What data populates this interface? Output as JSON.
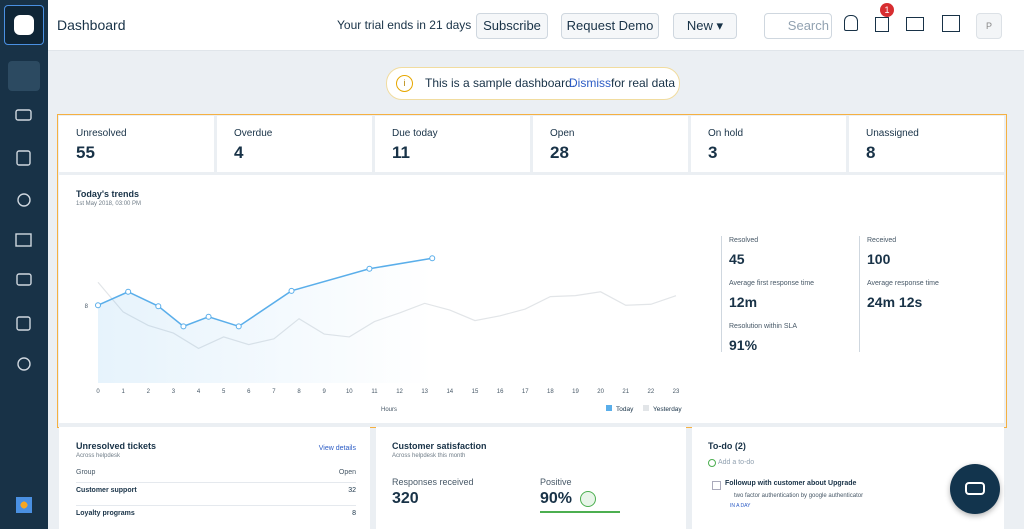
{
  "header": {
    "title": "Dashboard",
    "trial": "Your trial ends in 21 days",
    "subscribe": "Subscribe",
    "request_demo": "Request Demo",
    "new": "New",
    "search": "Search",
    "notification_count": "1",
    "avatar": "P"
  },
  "banner": {
    "text": "This is a sample dashboard.",
    "link": "Dismiss",
    "suffix": "for real data"
  },
  "stats": [
    {
      "label": "Unresolved",
      "value": 55
    },
    {
      "label": "Overdue",
      "value": 4
    },
    {
      "label": "Due today",
      "value": 11
    },
    {
      "label": "Open",
      "value": 28
    },
    {
      "label": "On hold",
      "value": 3
    },
    {
      "label": "Unassigned",
      "value": 8
    }
  ],
  "chart_data": {
    "type": "line",
    "title": "Today's trends",
    "subtitle": "1st May 2018, 03:00 PM",
    "x_label": "Hours",
    "x": [
      0,
      1,
      2,
      3,
      4,
      5,
      6,
      7,
      8,
      9,
      10,
      11,
      12,
      13,
      14,
      15,
      16,
      17,
      18,
      19,
      20,
      21,
      22,
      23
    ],
    "xlim": [
      0,
      23
    ],
    "ylim": [
      0,
      16
    ],
    "yticks": [
      8
    ],
    "series": [
      {
        "name": "Today",
        "color": "#5aaeea",
        "x": [
          0,
          1.2,
          2.4,
          3.4,
          4.4,
          5.6,
          7.7,
          10.8,
          13.3
        ],
        "values": [
          8.1,
          9.5,
          8,
          5.9,
          6.9,
          5.9,
          9.6,
          11.9,
          13
        ]
      },
      {
        "name": "Yesterday",
        "color": "#e2e5e8",
        "x": [
          0,
          1,
          2,
          3,
          4,
          5,
          6,
          7,
          8,
          9,
          10,
          11,
          12,
          13,
          14,
          15,
          16,
          17,
          18,
          19,
          20,
          21,
          22,
          23
        ],
        "values": [
          10.5,
          7.4,
          6,
          5.2,
          3.6,
          4.8,
          4,
          4.6,
          6.7,
          5.1,
          4.8,
          6.4,
          7.3,
          8.3,
          7.6,
          6.5,
          7,
          7.7,
          9,
          9.1,
          9.5,
          8.1,
          8.2,
          9.1
        ]
      }
    ]
  },
  "metrics": [
    {
      "label": "Resolved",
      "value": 45
    },
    {
      "label": "Received",
      "value": 100
    },
    {
      "label": "Average first response time",
      "value": "12m"
    },
    {
      "label": "Average response time",
      "value": "24m 12s"
    },
    {
      "label": "Resolution within SLA",
      "value": "91%"
    }
  ],
  "unresolved": {
    "title": "Unresolved tickets",
    "subtitle": "Across helpdesk",
    "link": "View details",
    "columns": [
      "Group",
      "Open"
    ],
    "rows": [
      [
        "Customer support",
        32
      ],
      [
        "Loyalty programs",
        8
      ]
    ]
  },
  "satisfaction": {
    "title": "Customer satisfaction",
    "subtitle": "Across helpdesk this month",
    "responses_label": "Responses received",
    "responses": 320,
    "positive_label": "Positive",
    "positive": "90%"
  },
  "todo": {
    "title": "To-do (2)",
    "add": "Add a to-do",
    "items": [
      {
        "title": "Followup with customer about Upgrade",
        "detail": "two factor authentication by google authenticator",
        "due": "IN A DAY"
      }
    ]
  }
}
